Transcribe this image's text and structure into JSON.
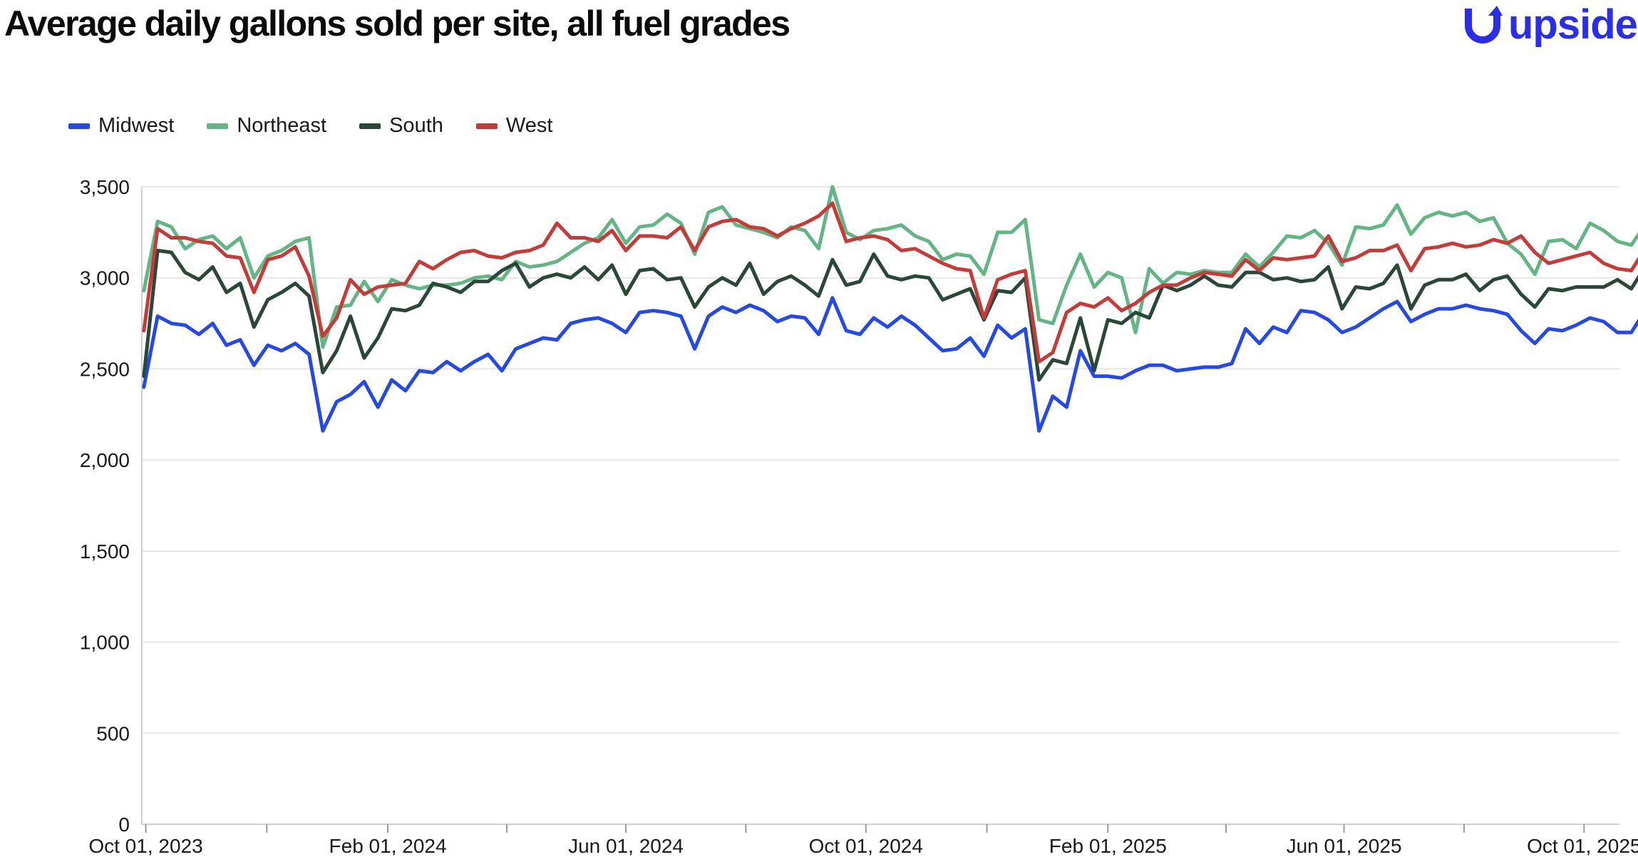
{
  "title": "Average daily gallons sold per site, all fuel grades",
  "logo": {
    "text": "upside",
    "color": "#2b2ee8"
  },
  "chart_data": {
    "type": "line",
    "title": "Average daily gallons sold per site, all fuel grades",
    "xlabel": "",
    "ylabel": "",
    "ylim": [
      0,
      3500
    ],
    "yticks": [
      0,
      500,
      1000,
      1500,
      2000,
      2500,
      3000,
      3500
    ],
    "ytick_labels": [
      "0",
      "500",
      "1,000",
      "1,500",
      "2,000",
      "2,500",
      "3,000",
      "3,500"
    ],
    "x_start": "2023-09-30",
    "x_step_days": 7,
    "xlim": [
      "2023-09-29",
      "2025-10-19"
    ],
    "xticks": [
      "2023-10-01",
      "2024-02-01",
      "2024-06-01",
      "2024-10-01",
      "2025-02-01",
      "2025-06-01",
      "2025-10-01"
    ],
    "xtick_labels": [
      "Oct 01, 2023",
      "Feb 01, 2024",
      "Jun 01, 2024",
      "Oct 01, 2024",
      "Feb 01, 2025",
      "Jun 01, 2025",
      "Oct 01, 2025"
    ],
    "grid": "horizontal",
    "legend_position": "top-left",
    "series": [
      {
        "name": "Midwest",
        "color": "#2448ea",
        "values": [
          2400,
          2790,
          2750,
          2740,
          2690,
          2750,
          2630,
          2660,
          2520,
          2630,
          2600,
          2640,
          2580,
          2160,
          2320,
          2360,
          2430,
          2290,
          2440,
          2380,
          2490,
          2480,
          2540,
          2490,
          2540,
          2580,
          2490,
          2610,
          2640,
          2670,
          2660,
          2750,
          2770,
          2780,
          2750,
          2700,
          2810,
          2820,
          2810,
          2790,
          2610,
          2790,
          2840,
          2810,
          2850,
          2820,
          2760,
          2790,
          2780,
          2690,
          2890,
          2710,
          2690,
          2780,
          2730,
          2790,
          2740,
          2670,
          2600,
          2610,
          2670,
          2570,
          2740,
          2670,
          2720,
          2160,
          2350,
          2290,
          2600,
          2460,
          2460,
          2450,
          2490,
          2520,
          2520,
          2490,
          2500,
          2510,
          2510,
          2530,
          2720,
          2640,
          2730,
          2700,
          2820,
          2810,
          2770,
          2700,
          2730,
          2780,
          2830,
          2870,
          2760,
          2800,
          2830,
          2830,
          2850,
          2830,
          2820,
          2800,
          2710,
          2640,
          2720,
          2710,
          2740,
          2780,
          2760,
          2700,
          2700,
          2820
        ]
      },
      {
        "name": "Northeast",
        "color": "#62b585",
        "values": [
          2930,
          3310,
          3280,
          3160,
          3210,
          3230,
          3160,
          3220,
          3000,
          3120,
          3150,
          3200,
          3220,
          2620,
          2840,
          2850,
          2980,
          2870,
          2990,
          2960,
          2940,
          2960,
          2960,
          2970,
          3000,
          3010,
          2990,
          3090,
          3060,
          3070,
          3090,
          3140,
          3190,
          3220,
          3320,
          3190,
          3280,
          3290,
          3350,
          3300,
          3130,
          3360,
          3390,
          3290,
          3270,
          3250,
          3220,
          3280,
          3260,
          3160,
          3500,
          3250,
          3210,
          3260,
          3270,
          3290,
          3230,
          3200,
          3100,
          3130,
          3120,
          3020,
          3250,
          3250,
          3320,
          2770,
          2750,
          2960,
          3130,
          2950,
          3030,
          3000,
          2700,
          3050,
          2970,
          3030,
          3020,
          3040,
          3030,
          3030,
          3130,
          3060,
          3140,
          3230,
          3220,
          3260,
          3190,
          3070,
          3280,
          3270,
          3290,
          3400,
          3240,
          3330,
          3360,
          3340,
          3360,
          3310,
          3330,
          3190,
          3130,
          3020,
          3200,
          3210,
          3160,
          3300,
          3260,
          3200,
          3180,
          3290
        ]
      },
      {
        "name": "South",
        "color": "#2b473a",
        "values": [
          2460,
          3150,
          3140,
          3030,
          2990,
          3060,
          2920,
          2970,
          2730,
          2880,
          2920,
          2970,
          2900,
          2480,
          2600,
          2790,
          2560,
          2670,
          2830,
          2820,
          2850,
          2970,
          2950,
          2920,
          2980,
          2980,
          3040,
          3080,
          2950,
          3000,
          3020,
          3000,
          3060,
          2990,
          3070,
          2910,
          3040,
          3050,
          2990,
          3000,
          2840,
          2950,
          3000,
          2960,
          3080,
          2910,
          2980,
          3010,
          2960,
          2900,
          3100,
          2960,
          2980,
          3130,
          3010,
          2990,
          3010,
          3000,
          2880,
          2910,
          2940,
          2770,
          2930,
          2920,
          3000,
          2440,
          2550,
          2530,
          2780,
          2490,
          2770,
          2750,
          2810,
          2780,
          2960,
          2930,
          2960,
          3010,
          2960,
          2950,
          3030,
          3030,
          2990,
          3000,
          2980,
          2990,
          3060,
          2830,
          2950,
          2940,
          2970,
          3070,
          2830,
          2960,
          2990,
          2990,
          3020,
          2930,
          2990,
          3010,
          2910,
          2840,
          2940,
          2930,
          2950,
          2950,
          2950,
          2990,
          2940,
          3060
        ]
      },
      {
        "name": "West",
        "color": "#c63b37",
        "values": [
          2710,
          3270,
          3220,
          3220,
          3200,
          3190,
          3120,
          3110,
          2920,
          3100,
          3120,
          3170,
          3010,
          2680,
          2780,
          2990,
          2910,
          2950,
          2960,
          2970,
          3090,
          3050,
          3100,
          3140,
          3150,
          3120,
          3110,
          3140,
          3150,
          3180,
          3300,
          3220,
          3220,
          3200,
          3260,
          3150,
          3230,
          3230,
          3220,
          3280,
          3150,
          3280,
          3310,
          3320,
          3280,
          3270,
          3230,
          3270,
          3300,
          3340,
          3410,
          3200,
          3220,
          3230,
          3210,
          3150,
          3160,
          3120,
          3080,
          3050,
          3040,
          2780,
          2990,
          3020,
          3040,
          2540,
          2590,
          2810,
          2860,
          2840,
          2890,
          2820,
          2860,
          2920,
          2960,
          2960,
          3000,
          3030,
          3020,
          3010,
          3100,
          3040,
          3110,
          3100,
          3110,
          3120,
          3230,
          3090,
          3110,
          3150,
          3150,
          3180,
          3040,
          3160,
          3170,
          3190,
          3170,
          3180,
          3210,
          3190,
          3230,
          3140,
          3080,
          3100,
          3120,
          3140,
          3080,
          3050,
          3040,
          3160
        ]
      }
    ]
  }
}
